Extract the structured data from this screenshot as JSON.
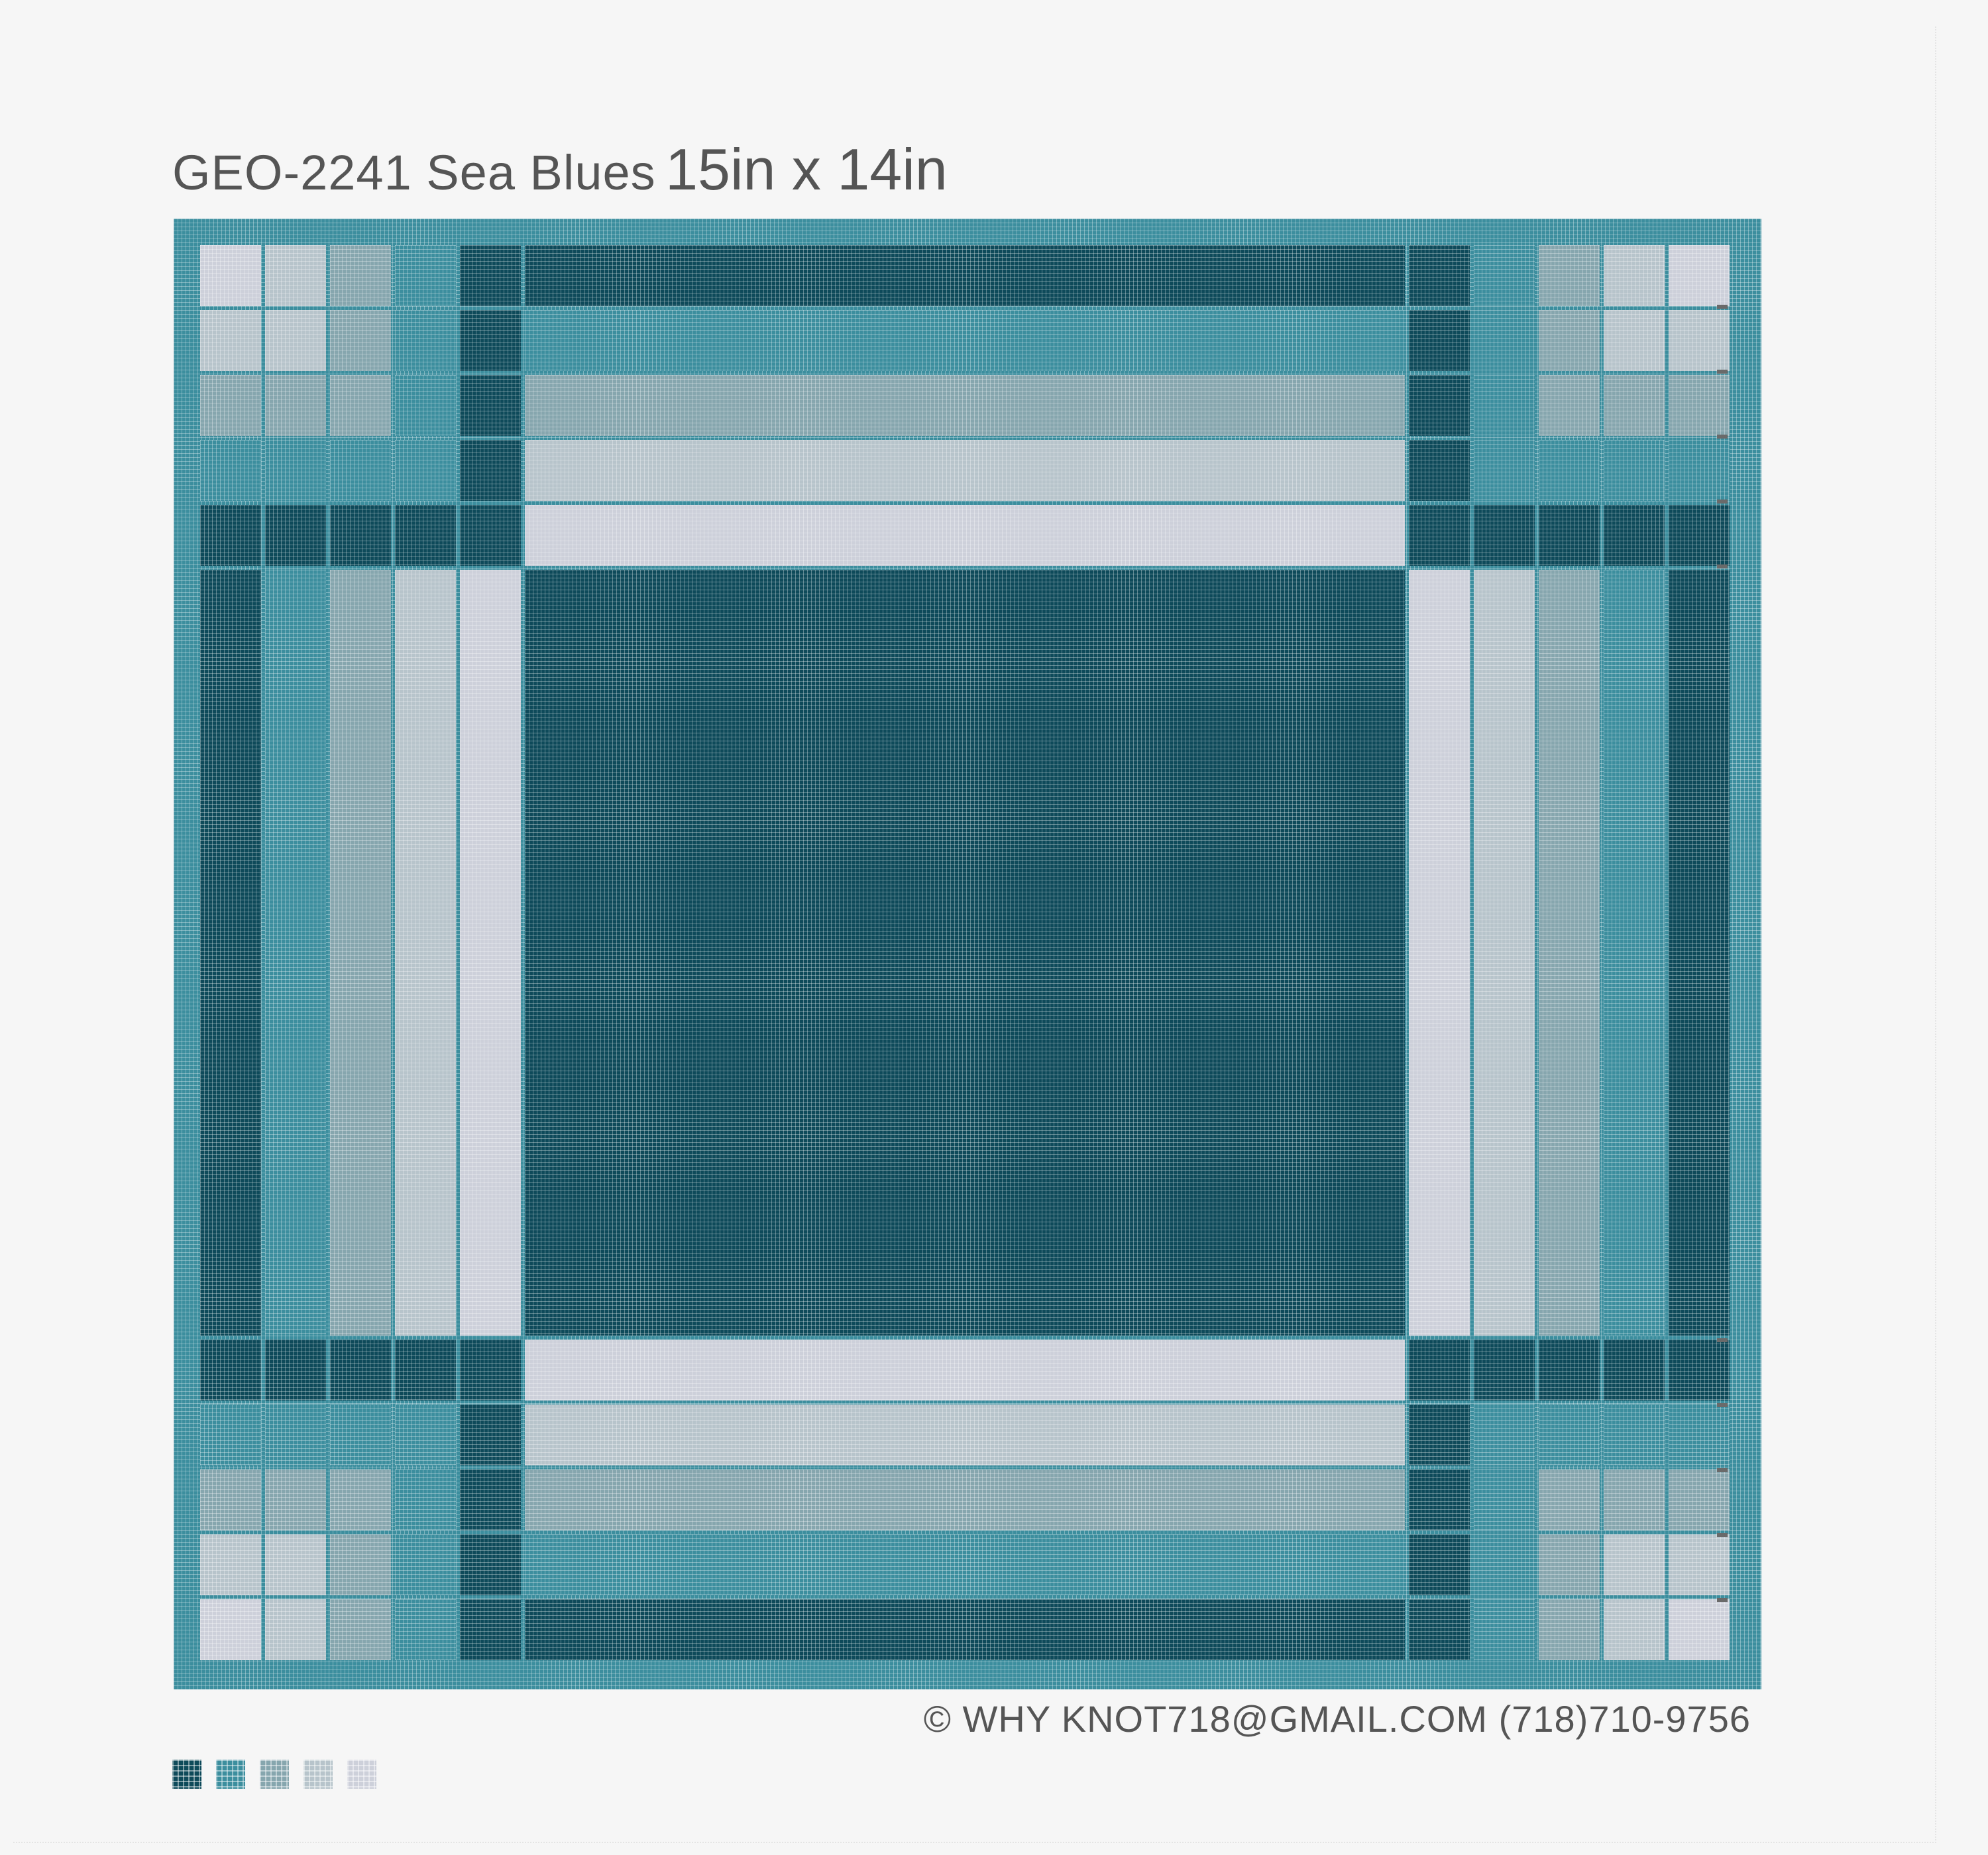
{
  "title": {
    "code": "GEO-2241 Sea Blues",
    "size": "15in x 14in"
  },
  "copyright": "© WHY KNOT718@GMAIL.COM (718)710-9756",
  "palette": {
    "A": "#0e4a5a",
    "B": "#3c8e9e",
    "C": "#86a6ae",
    "D": "#b7c4cb",
    "E": "#cdd0da"
  },
  "swatches": [
    "A",
    "B",
    "C",
    "D",
    "E"
  ],
  "pattern": {
    "border_color": "B",
    "rows": [
      [
        "E",
        "D",
        "C",
        "B",
        "A",
        "A",
        "A",
        "B",
        "C",
        "D",
        "E"
      ],
      [
        "D",
        "D",
        "C",
        "B",
        "A",
        "B",
        "A",
        "B",
        "C",
        "D",
        "D"
      ],
      [
        "C",
        "C",
        "C",
        "B",
        "A",
        "C",
        "A",
        "B",
        "C",
        "C",
        "C"
      ],
      [
        "B",
        "B",
        "B",
        "B",
        "A",
        "D",
        "A",
        "B",
        "B",
        "B",
        "B"
      ],
      [
        "A",
        "A",
        "A",
        "A",
        "A",
        "E",
        "A",
        "A",
        "A",
        "A",
        "A"
      ],
      [
        "A",
        "B",
        "C",
        "D",
        "E",
        "A",
        "E",
        "D",
        "C",
        "B",
        "A"
      ],
      [
        "A",
        "A",
        "A",
        "A",
        "A",
        "E",
        "A",
        "A",
        "A",
        "A",
        "A"
      ],
      [
        "B",
        "B",
        "B",
        "B",
        "A",
        "D",
        "A",
        "B",
        "B",
        "B",
        "B"
      ],
      [
        "C",
        "C",
        "C",
        "B",
        "A",
        "C",
        "A",
        "B",
        "C",
        "C",
        "C"
      ],
      [
        "D",
        "D",
        "C",
        "B",
        "A",
        "B",
        "A",
        "B",
        "C",
        "D",
        "D"
      ],
      [
        "E",
        "D",
        "C",
        "B",
        "A",
        "A",
        "A",
        "B",
        "C",
        "D",
        "E"
      ]
    ]
  }
}
